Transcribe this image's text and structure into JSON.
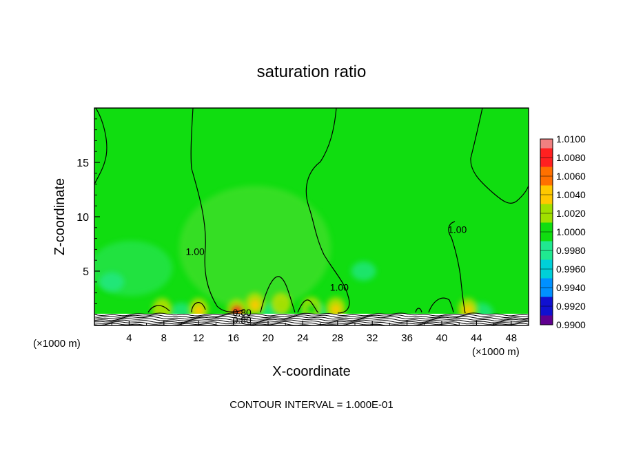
{
  "chart_data": {
    "type": "heatmap",
    "title": "saturation ratio",
    "xlabel": "X-coordinate",
    "ylabel": "Z-coordinate",
    "x_unit_label_left": "(×1000 m)",
    "x_unit_label_right": "(×1000 m)",
    "xlim": [
      0,
      50
    ],
    "ylim": [
      0,
      20
    ],
    "x_ticks": [
      4,
      8,
      12,
      16,
      20,
      24,
      28,
      32,
      36,
      40,
      44,
      48
    ],
    "y_ticks": [
      5,
      10,
      15
    ],
    "contour_interval_label": "CONTOUR INTERVAL = 1.000E-01",
    "contour_labels": [
      {
        "text": "1.00",
        "x": 11.6,
        "z": 6.5
      },
      {
        "text": "1.00",
        "x": 28.2,
        "z": 3.2
      },
      {
        "text": "1.00",
        "x": 41.8,
        "z": 8.5
      },
      {
        "text": "0.80",
        "x": 17.0,
        "z": 0.9
      },
      {
        "text": "0.80",
        "x": 17.0,
        "z": 0.2
      }
    ],
    "colorbar": {
      "labels": [
        "1.0100",
        "1.0080",
        "1.0060",
        "1.0040",
        "1.0020",
        "1.0000",
        "0.9980",
        "0.9960",
        "0.9940",
        "0.9920",
        "0.9900"
      ],
      "colors": [
        "#f08080",
        "#ff2020",
        "#ff7000",
        "#ffc800",
        "#a0e000",
        "#10dd10",
        "#20e890",
        "#00d0d8",
        "#0090ff",
        "#1010d0",
        "#600090"
      ]
    },
    "field": {
      "background_value": 1.0,
      "hotspots": [
        {
          "x": 16.4,
          "z": 1.4,
          "value": 1.008
        },
        {
          "x": 18.5,
          "z": 2.0,
          "value": 1.004
        },
        {
          "x": 21.5,
          "z": 2.0,
          "value": 1.002
        },
        {
          "x": 27.8,
          "z": 1.6,
          "value": 1.005
        },
        {
          "x": 12.0,
          "z": 1.5,
          "value": 1.004
        },
        {
          "x": 43.0,
          "z": 1.5,
          "value": 1.004
        },
        {
          "x": 7.8,
          "z": 1.5,
          "value": 1.002
        },
        {
          "x": 25.0,
          "z": 1.6,
          "value": 1.001
        }
      ],
      "low_spots": [
        {
          "x": 2.0,
          "z": 4.0,
          "value": 0.998
        },
        {
          "x": 20.5,
          "z": 1.2,
          "value": 0.997
        },
        {
          "x": 25.5,
          "z": 1.2,
          "value": 0.997
        },
        {
          "x": 10.0,
          "z": 1.2,
          "value": 0.997
        },
        {
          "x": 44.5,
          "z": 1.2,
          "value": 0.997
        },
        {
          "x": 31.0,
          "z": 5.0,
          "value": 0.998
        }
      ]
    }
  }
}
